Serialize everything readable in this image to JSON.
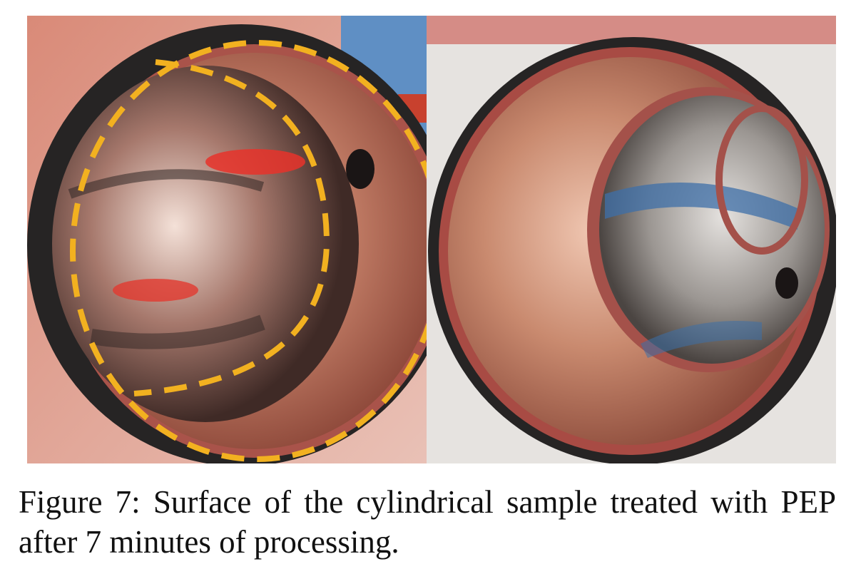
{
  "figure": {
    "caption": "Figure 7: Surface of the cylindrical sample treated with PEP after 7 minutes of processing.",
    "panels": [
      {
        "name": "left-photo",
        "description_icon": "copper-cylinder-with-dashed-outline"
      },
      {
        "name": "right-photo",
        "description_icon": "copper-cylinder-polished"
      }
    ],
    "colors": {
      "copper": "#c7846b",
      "copper_dark": "#7a3b2e",
      "dashed_outline": "#f2b120",
      "sleeve": "#2b2b2b",
      "background": "#ffffff"
    }
  }
}
